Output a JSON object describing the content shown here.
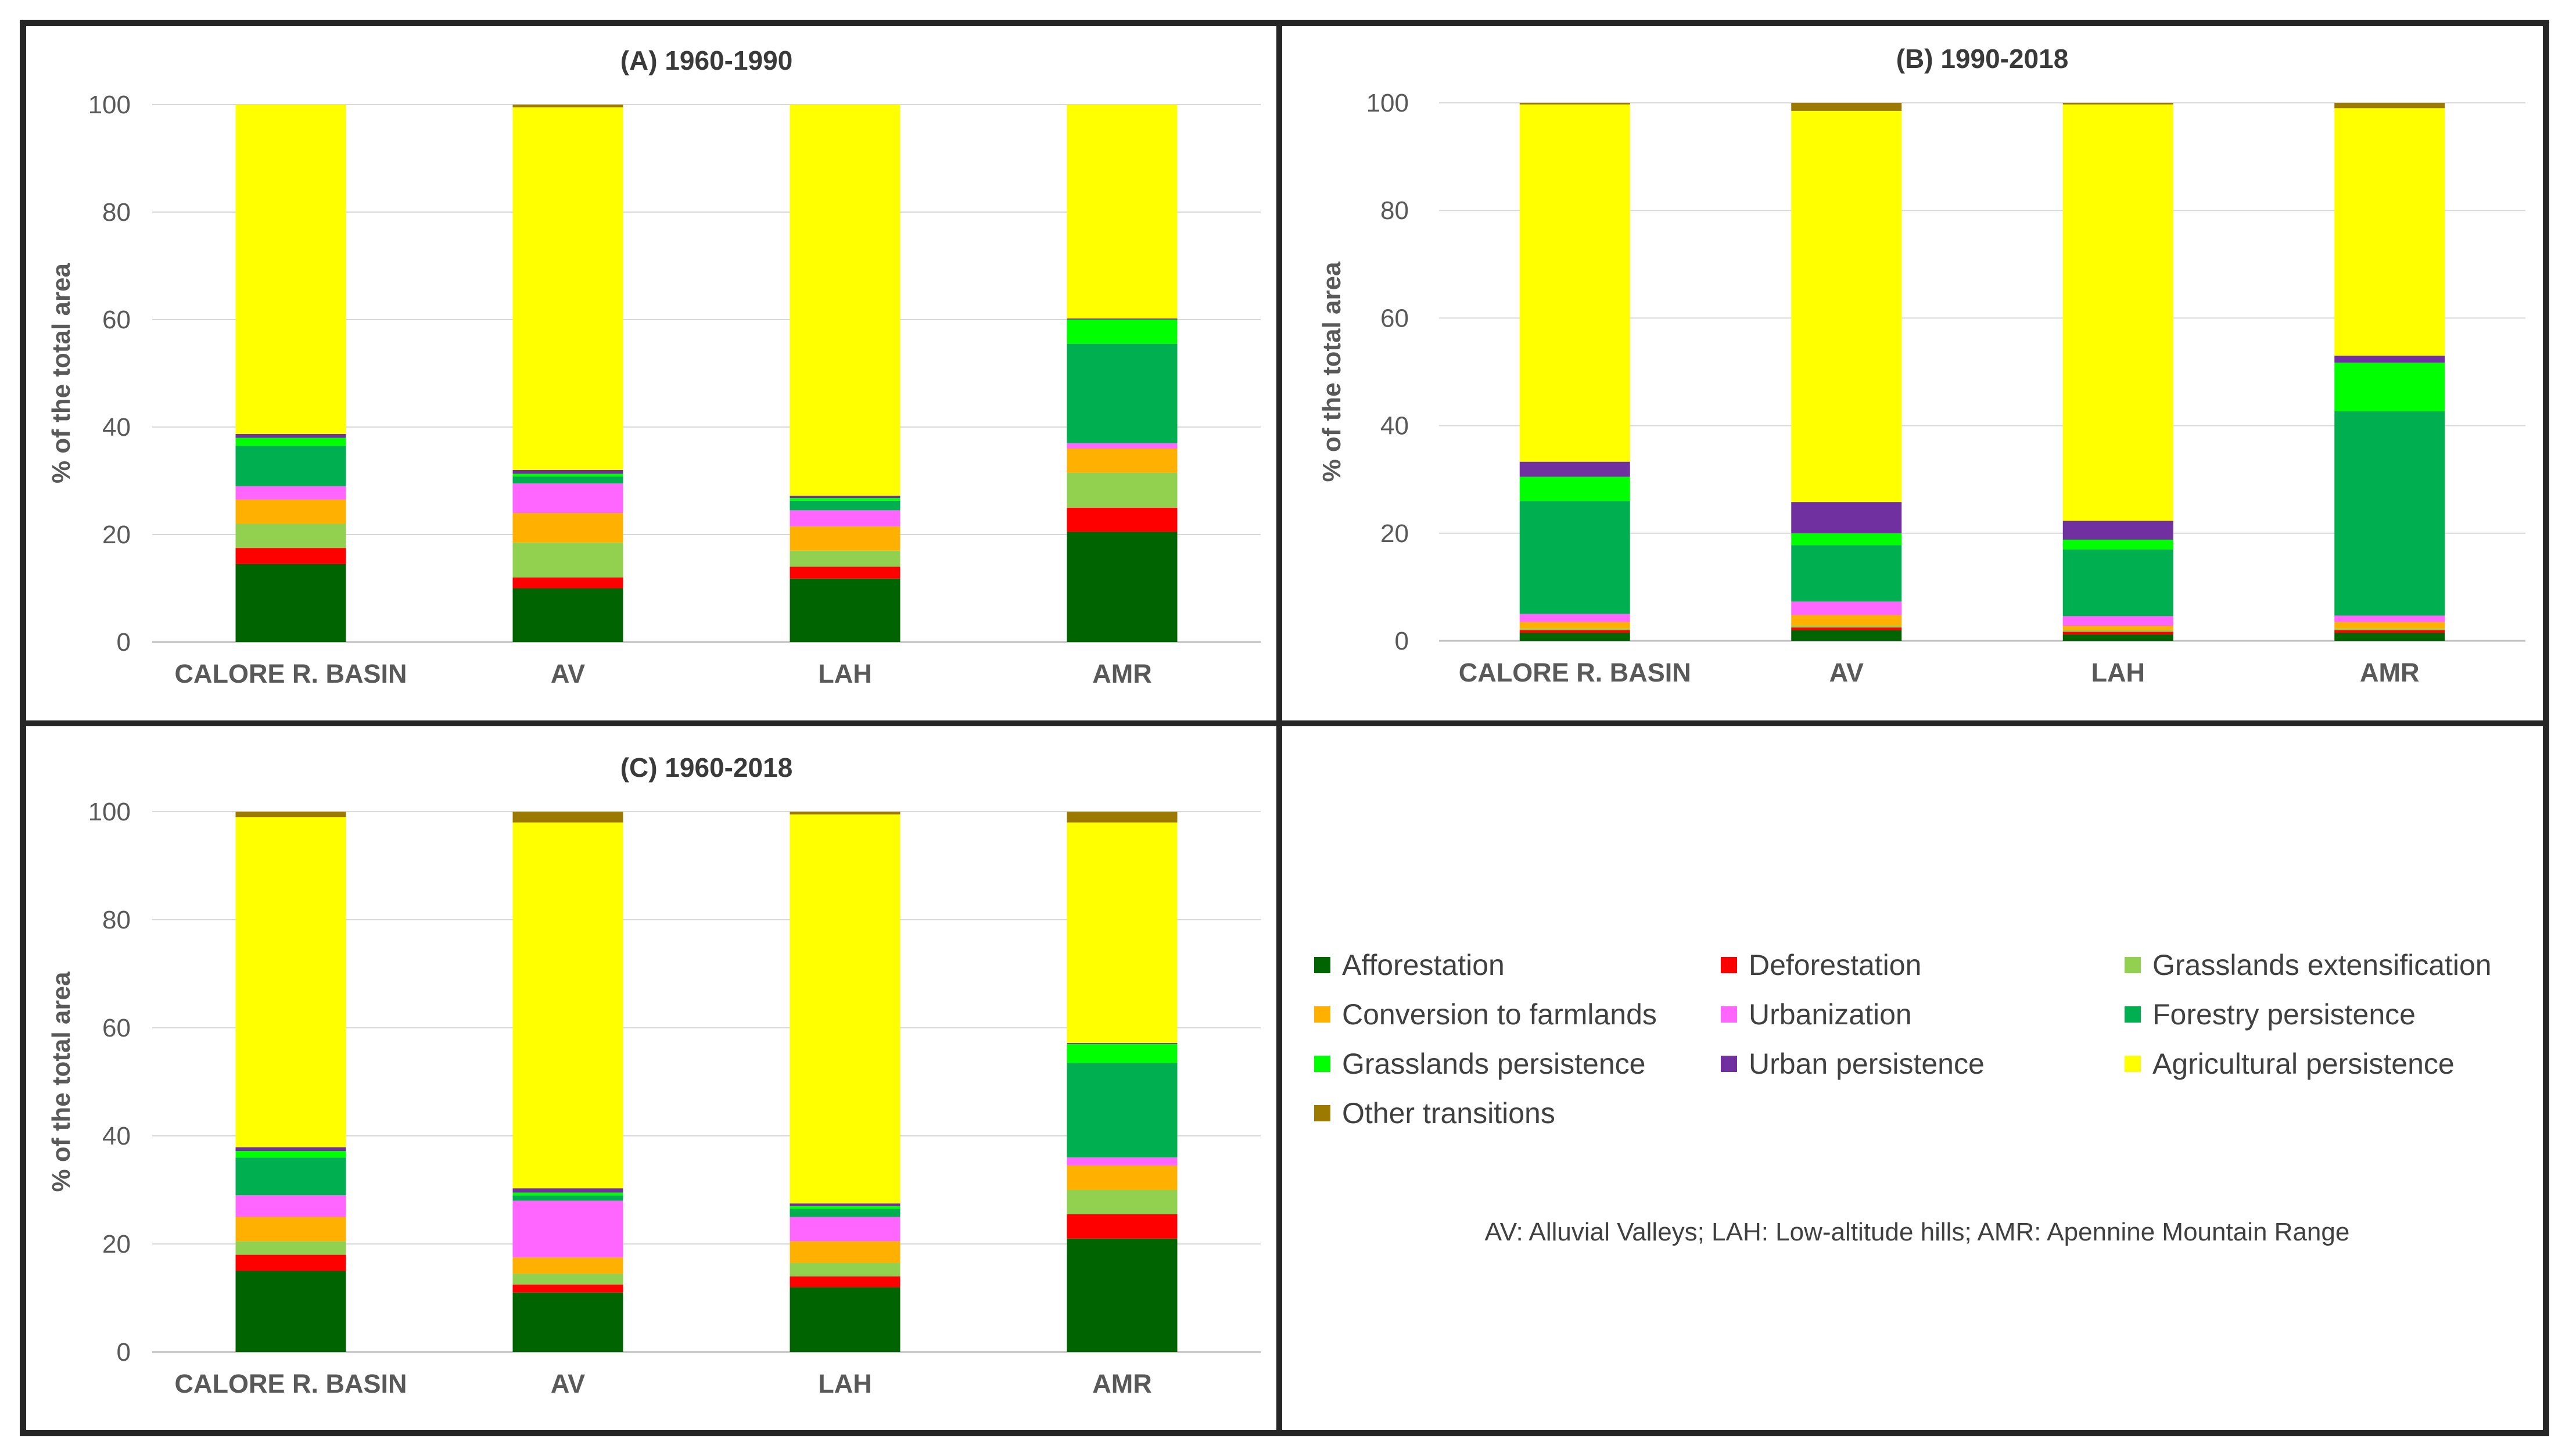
{
  "colors": {
    "Afforestation": "#006400",
    "Deforestation": "#ff0000",
    "Grasslands extensification": "#92d050",
    "Conversion to farmlands": "#ffb000",
    "Urbanization": "#ff66ff",
    "Forestry persistence": "#00b050",
    "Grasslands persistence": "#00ff00",
    "Urban persistence": "#7030a0",
    "Agricultural persistence": "#ffff00",
    "Other transitions": "#9c7a00"
  },
  "legend": {
    "items": [
      "Afforestation",
      "Deforestation",
      "Grasslands extensification",
      "Conversion to farmlands",
      "Urbanization",
      "Forestry persistence",
      "Grasslands persistence",
      "Urban persistence",
      "Agricultural persistence",
      "Other transitions"
    ],
    "note": "AV: Alluvial Valleys; LAH: Low-altitude hills; AMR: Apennine Mountain Range"
  },
  "chart_data": [
    {
      "type": "bar",
      "stacked": true,
      "title": "(A) 1960-1990",
      "ylabel": "% of the total area",
      "ylim": [
        0,
        100
      ],
      "yticks": [
        0,
        20,
        40,
        60,
        80,
        100
      ],
      "grid": true,
      "categories": [
        "CALORE R. BASIN",
        "AV",
        "LAH",
        "AMR"
      ],
      "series": [
        {
          "name": "Afforestation",
          "values": [
            14.5,
            10.0,
            11.8,
            20.5
          ]
        },
        {
          "name": "Deforestation",
          "values": [
            3.0,
            2.0,
            2.2,
            4.5
          ]
        },
        {
          "name": "Grasslands extensification",
          "values": [
            4.5,
            6.5,
            3.0,
            6.5
          ]
        },
        {
          "name": "Conversion to farmlands",
          "values": [
            4.5,
            5.5,
            4.5,
            4.5
          ]
        },
        {
          "name": "Urbanization",
          "values": [
            2.5,
            5.5,
            3.0,
            1.0
          ]
        },
        {
          "name": "Forestry persistence",
          "values": [
            7.5,
            1.3,
            1.8,
            18.5
          ]
        },
        {
          "name": "Grasslands persistence",
          "values": [
            1.5,
            0.5,
            0.5,
            4.5
          ]
        },
        {
          "name": "Urban persistence",
          "values": [
            0.7,
            0.7,
            0.4,
            0.2
          ]
        },
        {
          "name": "Agricultural persistence",
          "values": [
            61.3,
            67.5,
            72.8,
            39.8
          ]
        },
        {
          "name": "Other transitions",
          "values": [
            0.0,
            0.5,
            0.0,
            0.0
          ]
        }
      ]
    },
    {
      "type": "bar",
      "stacked": true,
      "title": "(B) 1990-2018",
      "ylabel": "% of the total area",
      "ylim": [
        0,
        100
      ],
      "yticks": [
        0,
        20,
        40,
        60,
        80,
        100
      ],
      "grid": true,
      "categories": [
        "CALORE R. BASIN",
        "AV",
        "LAH",
        "AMR"
      ],
      "series": [
        {
          "name": "Afforestation",
          "values": [
            1.5,
            2.0,
            1.2,
            1.5
          ]
        },
        {
          "name": "Deforestation",
          "values": [
            0.5,
            0.5,
            0.5,
            0.5
          ]
        },
        {
          "name": "Grasslands extensification",
          "values": [
            0.3,
            0.3,
            0.3,
            0.3
          ]
        },
        {
          "name": "Conversion to farmlands",
          "values": [
            1.2,
            2.0,
            0.8,
            1.2
          ]
        },
        {
          "name": "Urbanization",
          "values": [
            1.5,
            2.5,
            1.8,
            1.2
          ]
        },
        {
          "name": "Forestry persistence",
          "values": [
            21.0,
            10.5,
            12.4,
            38.0
          ]
        },
        {
          "name": "Grasslands persistence",
          "values": [
            4.5,
            2.2,
            1.8,
            9.0
          ]
        },
        {
          "name": "Urban persistence",
          "values": [
            2.8,
            5.8,
            3.5,
            1.3
          ]
        },
        {
          "name": "Agricultural persistence",
          "values": [
            66.4,
            72.7,
            77.4,
            46.0
          ]
        },
        {
          "name": "Other transitions",
          "values": [
            0.3,
            1.5,
            0.3,
            1.0
          ]
        }
      ]
    },
    {
      "type": "bar",
      "stacked": true,
      "title": "(C) 1960-2018",
      "ylabel": "% of the total area",
      "ylim": [
        0,
        100
      ],
      "yticks": [
        0,
        20,
        40,
        60,
        80,
        100
      ],
      "grid": true,
      "categories": [
        "CALORE R. BASIN",
        "AV",
        "LAH",
        "AMR"
      ],
      "series": [
        {
          "name": "Afforestation",
          "values": [
            15.0,
            11.0,
            12.0,
            21.0
          ]
        },
        {
          "name": "Deforestation",
          "values": [
            3.0,
            1.5,
            2.0,
            4.5
          ]
        },
        {
          "name": "Grasslands extensification",
          "values": [
            2.5,
            2.0,
            2.5,
            4.5
          ]
        },
        {
          "name": "Conversion to farmlands",
          "values": [
            4.5,
            3.0,
            4.0,
            4.5
          ]
        },
        {
          "name": "Urbanization",
          "values": [
            4.0,
            10.5,
            4.5,
            1.5
          ]
        },
        {
          "name": "Forestry persistence",
          "values": [
            7.0,
            1.0,
            1.5,
            17.5
          ]
        },
        {
          "name": "Grasslands persistence",
          "values": [
            1.2,
            0.5,
            0.5,
            3.5
          ]
        },
        {
          "name": "Urban persistence",
          "values": [
            0.7,
            0.8,
            0.5,
            0.2
          ]
        },
        {
          "name": "Agricultural persistence",
          "values": [
            61.1,
            67.7,
            72.0,
            40.8
          ]
        },
        {
          "name": "Other transitions",
          "values": [
            1.0,
            2.0,
            0.5,
            2.0
          ]
        }
      ]
    }
  ]
}
